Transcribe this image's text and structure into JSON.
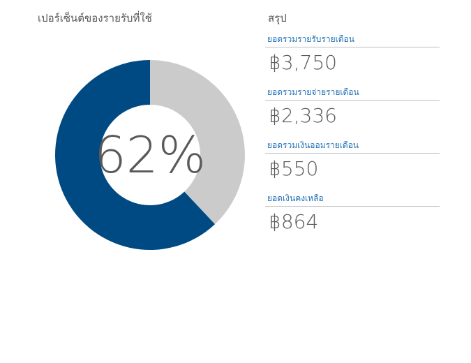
{
  "chart_data": {
    "type": "pie",
    "title": "เปอร์เซ็นต์ของรายรับที่ใช้",
    "center_label": "62%",
    "slices": [
      {
        "value": 62,
        "color": "#004a83"
      },
      {
        "value": 38,
        "color": "#cbcbcb"
      }
    ]
  },
  "summary": {
    "title": "สรุป",
    "items": [
      {
        "label": "ยอดรวมรายรับรายเดือน",
        "value": "฿3,750"
      },
      {
        "label": "ยอดรวมรายจ่ายรายเดือน",
        "value": "฿2,336"
      },
      {
        "label": "ยอดรวมเงินออมรายเดือน",
        "value": "฿550"
      },
      {
        "label": "ยอดเงินคงเหลือ",
        "value": "฿864"
      }
    ]
  }
}
